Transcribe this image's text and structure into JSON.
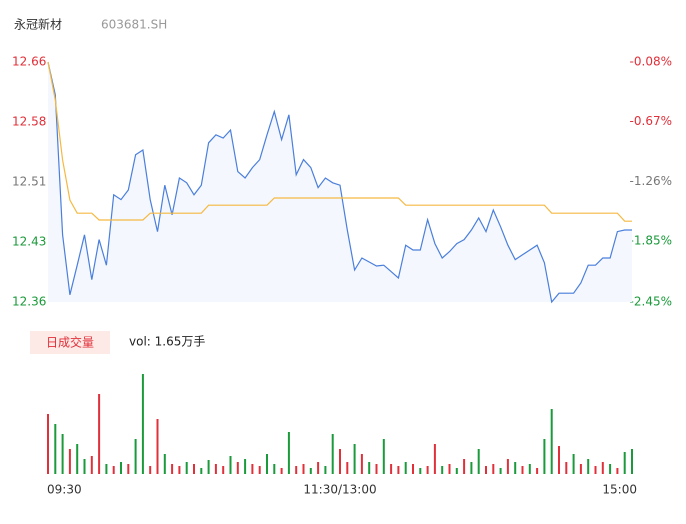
{
  "chart_data": [
    {
      "type": "line",
      "title": "永冠新材",
      "subtitle": "603681.SH",
      "x": [
        0,
        3,
        6,
        9,
        12,
        15,
        18,
        21,
        24,
        27,
        30,
        33,
        36,
        39,
        42,
        45,
        48,
        51,
        54,
        57,
        60,
        63,
        66,
        69,
        72,
        75,
        78,
        81,
        84,
        87,
        90,
        93,
        96,
        99,
        102,
        105,
        108,
        111,
        114,
        117,
        120,
        123,
        126,
        129,
        132,
        135,
        138,
        141,
        144,
        147,
        150,
        153,
        156,
        159,
        162,
        165,
        168,
        171,
        174,
        177,
        180,
        183,
        186,
        189,
        192,
        195,
        198,
        201,
        204,
        207,
        210,
        213,
        216,
        219,
        222,
        225,
        228,
        231,
        234,
        237,
        240
      ],
      "series": [
        {
          "name": "price",
          "color": "#4a7fdc",
          "values": [
            12.66,
            12.619,
            12.444,
            12.369,
            12.406,
            12.444,
            12.388,
            12.438,
            12.406,
            12.494,
            12.488,
            12.5,
            12.544,
            12.55,
            12.488,
            12.448,
            12.506,
            12.469,
            12.515,
            12.509,
            12.494,
            12.506,
            12.559,
            12.569,
            12.565,
            12.575,
            12.523,
            12.515,
            12.528,
            12.538,
            12.569,
            12.598,
            12.563,
            12.594,
            12.519,
            12.538,
            12.528,
            12.503,
            12.515,
            12.509,
            12.506,
            12.45,
            12.4,
            12.415,
            12.41,
            12.405,
            12.406,
            12.398,
            12.39,
            12.431,
            12.425,
            12.425,
            12.463,
            12.433,
            12.415,
            12.423,
            12.433,
            12.438,
            12.45,
            12.465,
            12.448,
            12.475,
            12.454,
            12.431,
            12.413,
            12.419,
            12.425,
            12.431,
            12.409,
            12.36,
            12.371,
            12.371,
            12.371,
            12.384,
            12.406,
            12.406,
            12.415,
            12.415,
            12.448,
            12.45,
            12.45
          ]
        },
        {
          "name": "average",
          "color": "#f5b942",
          "values": [
            12.66,
            12.6125,
            12.5375,
            12.4875,
            12.471,
            12.471,
            12.471,
            12.4625,
            12.4625,
            12.4625,
            12.4625,
            12.4625,
            12.4625,
            12.4625,
            12.471,
            12.471,
            12.471,
            12.471,
            12.471,
            12.471,
            12.471,
            12.471,
            12.481,
            12.481,
            12.481,
            12.481,
            12.481,
            12.481,
            12.481,
            12.481,
            12.481,
            12.49,
            12.49,
            12.49,
            12.49,
            12.49,
            12.49,
            12.49,
            12.49,
            12.49,
            12.49,
            12.49,
            12.49,
            12.49,
            12.49,
            12.49,
            12.49,
            12.49,
            12.49,
            12.481,
            12.481,
            12.481,
            12.481,
            12.481,
            12.481,
            12.481,
            12.481,
            12.481,
            12.481,
            12.481,
            12.481,
            12.481,
            12.481,
            12.481,
            12.481,
            12.481,
            12.481,
            12.481,
            12.481,
            12.471,
            12.471,
            12.471,
            12.471,
            12.471,
            12.471,
            12.471,
            12.471,
            12.471,
            12.471,
            12.461,
            12.461
          ]
        }
      ],
      "xlim": [
        0,
        240
      ],
      "xticks": [
        {
          "value": 0,
          "label": "09:30"
        },
        {
          "value": 120,
          "label": "11:30/13:00"
        },
        {
          "value": 240,
          "label": "15:00"
        }
      ],
      "ylim": [
        12.36,
        12.66
      ],
      "yticks": [
        12.36,
        {
          "value": 12.435,
          "label": "12.43"
        },
        12.51,
        {
          "value": 12.585,
          "label": "12.58"
        },
        12.66
      ],
      "ytick_colors": [
        "#1a9a3a",
        "#1a9a3a",
        "#777777",
        "#e0303a",
        "#e0303a"
      ],
      "y2lim": [
        -2.45,
        -0.08
      ],
      "y2ticks": [
        {
          "value": -2.45,
          "label": "-2.45%"
        },
        {
          "value": -1.85,
          "label": "-1.85%"
        },
        {
          "value": -1.26,
          "label": "-1.26%"
        },
        {
          "value": -0.67,
          "label": "-0.67%"
        },
        {
          "value": -0.08,
          "label": "-0.08%"
        }
      ],
      "y2tick_colors": [
        "#1a9a3a",
        "#1a9a3a",
        "#777777",
        "#e0303a",
        "#e0303a"
      ],
      "area_color": "#f4f7fd"
    },
    {
      "type": "bar",
      "title": "日成交量",
      "subtitle": "vol: 1.65万手",
      "x": [
        0,
        3,
        6,
        9,
        12,
        15,
        18,
        21,
        24,
        27,
        30,
        33,
        36,
        39,
        42,
        45,
        48,
        51,
        54,
        57,
        60,
        63,
        66,
        69,
        72,
        75,
        78,
        81,
        84,
        87,
        90,
        93,
        96,
        99,
        102,
        105,
        108,
        111,
        114,
        117,
        120,
        123,
        126,
        129,
        132,
        135,
        138,
        141,
        144,
        147,
        150,
        153,
        156,
        159,
        162,
        165,
        168,
        171,
        174,
        177,
        180,
        183,
        186,
        189,
        192,
        195,
        198,
        201,
        204,
        207,
        210,
        213,
        216,
        219,
        222,
        225,
        228,
        231,
        234,
        237,
        240
      ],
      "values": [
        60,
        50,
        40,
        25,
        30,
        15,
        18,
        80,
        10,
        8,
        12,
        10,
        35,
        100,
        8,
        55,
        20,
        10,
        8,
        12,
        10,
        6,
        14,
        10,
        8,
        18,
        12,
        15,
        10,
        8,
        20,
        10,
        6,
        42,
        8,
        10,
        6,
        12,
        8,
        40,
        25,
        12,
        30,
        20,
        12,
        10,
        35,
        10,
        8,
        12,
        10,
        6,
        8,
        30,
        8,
        10,
        6,
        15,
        12,
        25,
        8,
        10,
        6,
        15,
        12,
        8,
        10,
        6,
        35,
        65,
        28,
        12,
        20,
        10,
        15,
        8,
        12,
        10,
        6,
        22,
        25
      ],
      "colors": [
        "#e0303a",
        "#1a9a3a",
        "#1a9a3a",
        "#e0303a",
        "#1a9a3a",
        "#1a9a3a",
        "#e0303a",
        "#e0303a",
        "#1a9a3a",
        "#e0303a",
        "#1a9a3a",
        "#e0303a",
        "#1a9a3a",
        "#1a9a3a",
        "#e0303a",
        "#e0303a",
        "#1a9a3a",
        "#e0303a",
        "#e0303a",
        "#1a9a3a",
        "#e0303a",
        "#1a9a3a",
        "#1a9a3a",
        "#e0303a",
        "#e0303a",
        "#1a9a3a",
        "#e0303a",
        "#1a9a3a",
        "#e0303a",
        "#e0303a",
        "#1a9a3a",
        "#1a9a3a",
        "#e0303a",
        "#1a9a3a",
        "#e0303a",
        "#e0303a",
        "#1a9a3a",
        "#e0303a",
        "#1a9a3a",
        "#1a9a3a",
        "#e0303a",
        "#e0303a",
        "#1a9a3a",
        "#e0303a",
        "#1a9a3a",
        "#e0303a",
        "#1a9a3a",
        "#e0303a",
        "#e0303a",
        "#1a9a3a",
        "#e0303a",
        "#1a9a3a",
        "#e0303a",
        "#e0303a",
        "#1a9a3a",
        "#e0303a",
        "#1a9a3a",
        "#e0303a",
        "#1a9a3a",
        "#1a9a3a",
        "#e0303a",
        "#e0303a",
        "#1a9a3a",
        "#e0303a",
        "#1a9a3a",
        "#e0303a",
        "#1a9a3a",
        "#e0303a",
        "#1a9a3a",
        "#1a9a3a",
        "#e0303a",
        "#e0303a",
        "#1a9a3a",
        "#e0303a",
        "#1a9a3a",
        "#e0303a",
        "#e0303a",
        "#1a9a3a",
        "#e0303a",
        "#1a9a3a",
        "#1a9a3a"
      ],
      "ylim": [
        0,
        100
      ]
    }
  ]
}
